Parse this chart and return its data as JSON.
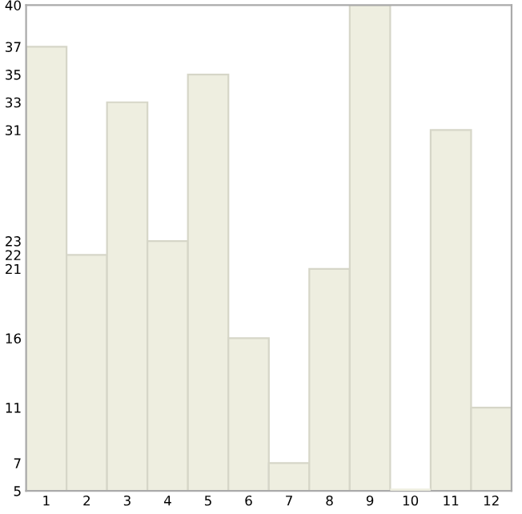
{
  "chart_data": {
    "type": "bar",
    "categories": [
      "1",
      "2",
      "3",
      "4",
      "5",
      "6",
      "7",
      "8",
      "9",
      "10",
      "11",
      "12"
    ],
    "values": [
      37,
      22,
      33,
      23,
      35,
      16,
      7,
      21,
      40,
      5,
      31,
      11
    ],
    "color": "#eeeee0",
    "ylim": [
      5,
      40
    ],
    "yticks": [
      5,
      7,
      11,
      16,
      21,
      22,
      23,
      31,
      33,
      35,
      37,
      40
    ],
    "grid": false
  }
}
